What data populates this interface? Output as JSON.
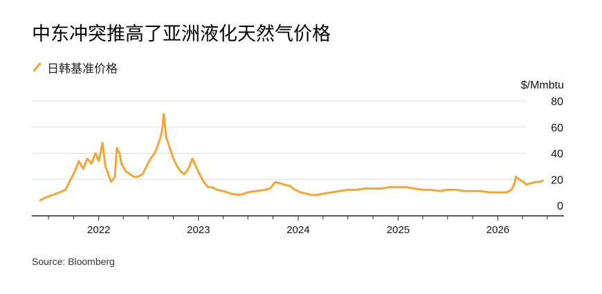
{
  "title": "中东冲突推高了亚洲液化天然气价格",
  "source": "Source: Bloomberg",
  "colors": {
    "series": "#f5a533",
    "grid": "#dddddd",
    "axis": "#222222",
    "text": "#111111"
  },
  "chart_data": {
    "type": "line",
    "title": "中东冲突推高了亚洲液化天然气价格",
    "ylabel": "$/Mmbtu",
    "xlabel": "",
    "ylim": [
      0,
      80
    ],
    "yticks": [
      0,
      20,
      40,
      60,
      80
    ],
    "ytick_labels": [
      "0",
      "20",
      "40",
      "60",
      "80"
    ],
    "xlim": [
      "2021-05-01",
      "2026-08-31"
    ],
    "xtick_labels": [
      "2022",
      "2023",
      "2024",
      "2025",
      "2026"
    ],
    "xtick_label_dates": [
      "2022-01-01",
      "2023-01-01",
      "2024-01-01",
      "2025-01-01",
      "2026-01-01"
    ],
    "grid": "horizontal",
    "legend_position": "top-left",
    "series": [
      {
        "name": "日韩基准价格",
        "color": "#f5a533",
        "points": [
          [
            "2021-06-01",
            4
          ],
          [
            "2021-06-20",
            6
          ],
          [
            "2021-07-15",
            8
          ],
          [
            "2021-08-10",
            10
          ],
          [
            "2021-09-01",
            12
          ],
          [
            "2021-09-20",
            20
          ],
          [
            "2021-10-05",
            26
          ],
          [
            "2021-10-20",
            34
          ],
          [
            "2021-11-05",
            28
          ],
          [
            "2021-11-20",
            36
          ],
          [
            "2021-12-05",
            32
          ],
          [
            "2021-12-20",
            40
          ],
          [
            "2022-01-01",
            34
          ],
          [
            "2022-01-15",
            48
          ],
          [
            "2022-01-25",
            30
          ],
          [
            "2022-02-05",
            24
          ],
          [
            "2022-02-15",
            18
          ],
          [
            "2022-03-01",
            22
          ],
          [
            "2022-03-08",
            44
          ],
          [
            "2022-03-18",
            40
          ],
          [
            "2022-03-25",
            32
          ],
          [
            "2022-04-10",
            26
          ],
          [
            "2022-04-25",
            24
          ],
          [
            "2022-05-10",
            22
          ],
          [
            "2022-05-25",
            22
          ],
          [
            "2022-06-10",
            24
          ],
          [
            "2022-06-25",
            30
          ],
          [
            "2022-07-10",
            36
          ],
          [
            "2022-07-25",
            40
          ],
          [
            "2022-08-05",
            46
          ],
          [
            "2022-08-15",
            52
          ],
          [
            "2022-08-22",
            59
          ],
          [
            "2022-08-27",
            70
          ],
          [
            "2022-09-05",
            52
          ],
          [
            "2022-09-18",
            44
          ],
          [
            "2022-10-01",
            36
          ],
          [
            "2022-10-15",
            30
          ],
          [
            "2022-10-28",
            26
          ],
          [
            "2022-11-10",
            24
          ],
          [
            "2022-11-25",
            28
          ],
          [
            "2022-12-10",
            36
          ],
          [
            "2022-12-22",
            30
          ],
          [
            "2023-01-05",
            24
          ],
          [
            "2023-01-20",
            18
          ],
          [
            "2023-02-05",
            14
          ],
          [
            "2023-02-20",
            14
          ],
          [
            "2023-03-10",
            12
          ],
          [
            "2023-04-01",
            11
          ],
          [
            "2023-05-01",
            9
          ],
          [
            "2023-06-01",
            8
          ],
          [
            "2023-07-01",
            10
          ],
          [
            "2023-08-01",
            11
          ],
          [
            "2023-09-01",
            12
          ],
          [
            "2023-09-20",
            13
          ],
          [
            "2023-10-10",
            18
          ],
          [
            "2023-10-25",
            17
          ],
          [
            "2023-11-10",
            16
          ],
          [
            "2023-12-01",
            15
          ],
          [
            "2023-12-20",
            12
          ],
          [
            "2024-01-10",
            10
          ],
          [
            "2024-02-01",
            9
          ],
          [
            "2024-02-20",
            8
          ],
          [
            "2024-03-10",
            8
          ],
          [
            "2024-04-01",
            9
          ],
          [
            "2024-05-01",
            10
          ],
          [
            "2024-06-01",
            11
          ],
          [
            "2024-07-01",
            12
          ],
          [
            "2024-08-01",
            12
          ],
          [
            "2024-09-01",
            13
          ],
          [
            "2024-10-01",
            13
          ],
          [
            "2024-11-01",
            13
          ],
          [
            "2024-12-01",
            14
          ],
          [
            "2025-01-01",
            14
          ],
          [
            "2025-02-01",
            14
          ],
          [
            "2025-03-01",
            13
          ],
          [
            "2025-04-01",
            12
          ],
          [
            "2025-05-01",
            12
          ],
          [
            "2025-06-01",
            11
          ],
          [
            "2025-07-01",
            12
          ],
          [
            "2025-08-01",
            12
          ],
          [
            "2025-09-01",
            11
          ],
          [
            "2025-10-01",
            11
          ],
          [
            "2025-11-01",
            11
          ],
          [
            "2025-12-01",
            10
          ],
          [
            "2026-01-01",
            10
          ],
          [
            "2026-02-01",
            10
          ],
          [
            "2026-02-20",
            12
          ],
          [
            "2026-03-01",
            16
          ],
          [
            "2026-03-08",
            22
          ],
          [
            "2026-03-20",
            20
          ],
          [
            "2026-04-05",
            18
          ],
          [
            "2026-04-15",
            16
          ],
          [
            "2026-05-01",
            17
          ],
          [
            "2026-05-20",
            18
          ],
          [
            "2026-06-05",
            18
          ],
          [
            "2026-06-15",
            19
          ]
        ]
      }
    ]
  }
}
